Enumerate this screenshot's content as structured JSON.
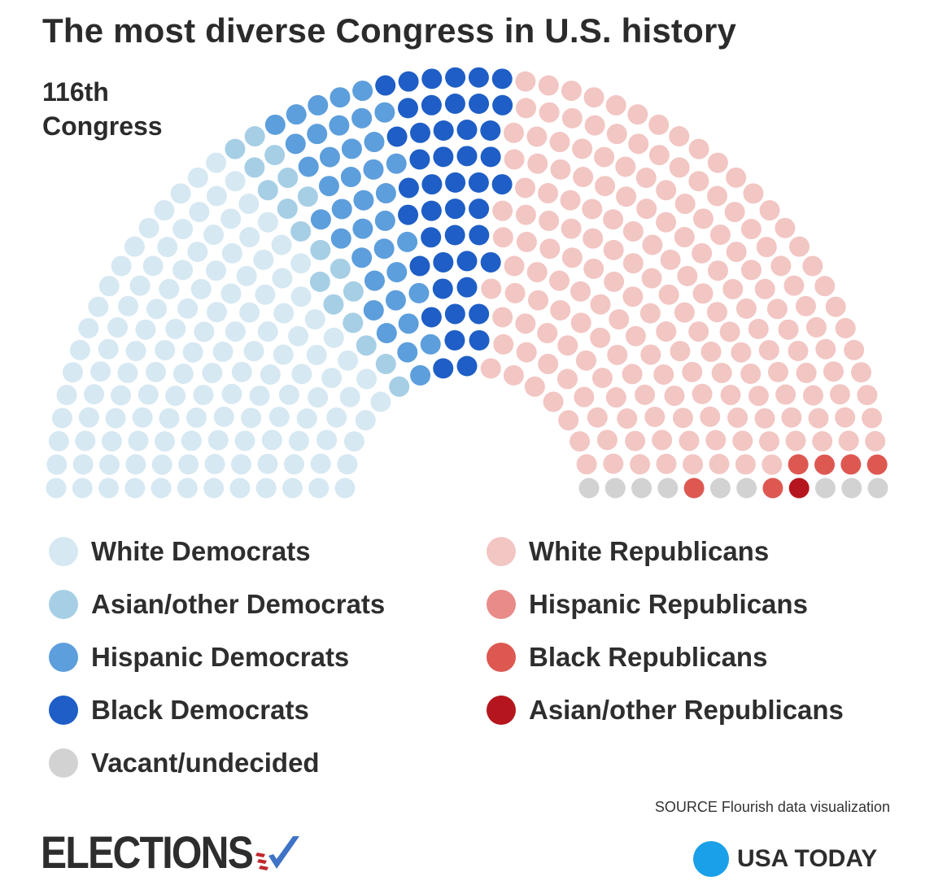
{
  "title": "The most diverse Congress in U.S. history",
  "subtitle": "116th Congress",
  "source": "SOURCE Flourish data visualization",
  "branding": {
    "left_logo": "ELECTIONS",
    "right_logo": "USA TODAY",
    "left_logo_icon": "checkmark-flag-icon",
    "right_logo_icon": "blue-circle-icon"
  },
  "colors": {
    "white_dem": "#d6e8f2",
    "asian_dem": "#a6cfe6",
    "hispanic_dem": "#5d9edc",
    "black_dem": "#1e5ec6",
    "white_rep": "#f2c6c3",
    "hispanic_rep": "#e88b89",
    "black_rep": "#de5852",
    "asian_rep": "#b5161d",
    "vacant": "#d2d2d2",
    "usa_today_blue": "#1aa0e8"
  },
  "chart_data": {
    "type": "parliament",
    "title": "The most diverse Congress in U.S. history",
    "subtitle": "116th Congress",
    "total_seats": 435,
    "legend_placement": "bottom",
    "series": [
      {
        "key": "white_dem",
        "name": "White Democrats",
        "value": 132
      },
      {
        "key": "asian_dem",
        "name": "Asian/other Democrats",
        "value": 18
      },
      {
        "key": "hispanic_dem",
        "name": "Hispanic Democrats",
        "value": 38
      },
      {
        "key": "black_dem",
        "name": "Black Democrats",
        "value": 45
      },
      {
        "key": "white_rep",
        "name": "White Republicans",
        "value": 186
      },
      {
        "key": "hispanic_rep",
        "name": "Hispanic Republicans",
        "value": 0
      },
      {
        "key": "black_rep",
        "name": "Black Republicans",
        "value": 6
      },
      {
        "key": "asian_rep",
        "name": "Asian/other Republicans",
        "value": 1
      },
      {
        "key": "vacant",
        "name": "Vacant/undecided",
        "value": 9
      }
    ]
  },
  "legend": {
    "left": [
      {
        "key": "white_dem",
        "label": "White Democrats"
      },
      {
        "key": "asian_dem",
        "label": "Asian/other Democrats"
      },
      {
        "key": "hispanic_dem",
        "label": "Hispanic Democrats"
      },
      {
        "key": "black_dem",
        "label": "Black Democrats"
      },
      {
        "key": "vacant",
        "label": "Vacant/undecided"
      }
    ],
    "right": [
      {
        "key": "white_rep",
        "label": "White Republicans"
      },
      {
        "key": "hispanic_rep",
        "label": "Hispanic Republicans"
      },
      {
        "key": "black_rep",
        "label": "Black Republicans"
      },
      {
        "key": "asian_rep",
        "label": "Asian/other Republicans"
      }
    ]
  }
}
